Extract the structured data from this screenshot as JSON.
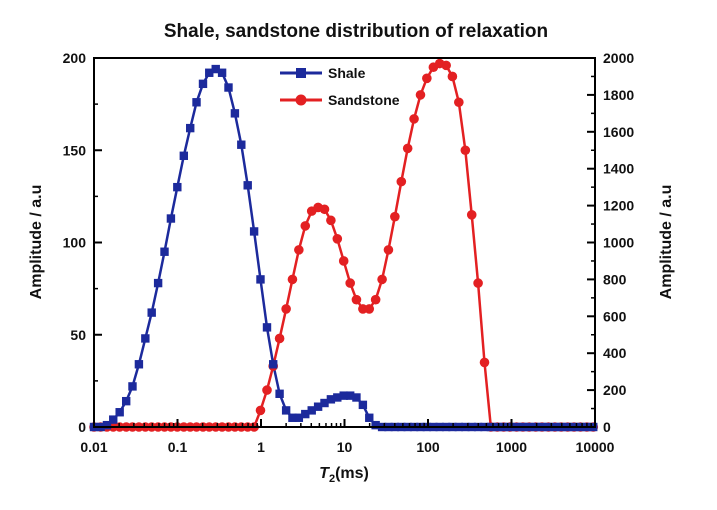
{
  "chart_data": {
    "type": "line",
    "title": "Shale, sandstone distribution of relaxation",
    "xlabel_main": "T",
    "xlabel_sub": "2",
    "xlabel_rest": "(ms)",
    "ylabel": "Amplitude / a.u",
    "y2label": "Amplitude / a.u",
    "xscale": "log",
    "xlim": [
      0.01,
      10000
    ],
    "ylim": [
      0,
      200
    ],
    "y2lim": [
      0,
      2000
    ],
    "x_ticks": [
      "0.01",
      "0.1",
      "1",
      "10",
      "100",
      "1000",
      "10000"
    ],
    "y_ticks": [
      "0",
      "50",
      "100",
      "150",
      "200"
    ],
    "y2_ticks": [
      "0",
      "200",
      "400",
      "600",
      "800",
      "1000",
      "1200",
      "1400",
      "1600",
      "1800",
      "2000"
    ],
    "legend_position": "top-center",
    "series": [
      {
        "name": "Shale",
        "axis": "left",
        "color": "#1c2a9c",
        "marker": "square",
        "x": [
          0.01,
          0.012,
          0.0143,
          0.017,
          0.0203,
          0.0243,
          0.0289,
          0.0345,
          0.0412,
          0.0491,
          0.0586,
          0.0699,
          0.0834,
          0.0995,
          0.119,
          0.142,
          0.169,
          0.202,
          0.24,
          0.287,
          0.342,
          0.408,
          0.487,
          0.581,
          0.693,
          0.827,
          0.986,
          1.18,
          1.4,
          1.67,
          2.0,
          2.38,
          2.84,
          3.39,
          4.05,
          4.83,
          5.76,
          6.87,
          8.2,
          9.78,
          11.7,
          13.9,
          16.6,
          19.8,
          23.6,
          28.2,
          33.6,
          40.1,
          47.9,
          57.1,
          68.1,
          81.3,
          96.9,
          116,
          138,
          165,
          196,
          234,
          280,
          334,
          398,
          475,
          566,
          676,
          806,
          962,
          1150,
          1370,
          1630,
          1950,
          2320,
          2770,
          3310,
          3940,
          4710,
          5610,
          6700,
          7990,
          9530
        ],
        "values": [
          0,
          0,
          1,
          4,
          8,
          14,
          22,
          34,
          48,
          62,
          78,
          95,
          113,
          130,
          147,
          162,
          176,
          186,
          192,
          194,
          192,
          184,
          170,
          153,
          131,
          106,
          80,
          54,
          34,
          18,
          9,
          5,
          5,
          7,
          9,
          11,
          13,
          15,
          16,
          17,
          17,
          16,
          12,
          5,
          1,
          0,
          0,
          0,
          0,
          0,
          0,
          0,
          0,
          0,
          0,
          0,
          0,
          0,
          0,
          0,
          0,
          0,
          0,
          0,
          0,
          0,
          0,
          0,
          0,
          0,
          0,
          0,
          0,
          0,
          0,
          0,
          0,
          0,
          0
        ]
      },
      {
        "name": "Sandstone",
        "axis": "right",
        "color": "#e32022",
        "marker": "circle",
        "x": [
          0.01,
          0.012,
          0.0143,
          0.017,
          0.0203,
          0.0243,
          0.0289,
          0.0345,
          0.0412,
          0.0491,
          0.0586,
          0.0699,
          0.0834,
          0.0995,
          0.119,
          0.142,
          0.169,
          0.202,
          0.24,
          0.287,
          0.342,
          0.408,
          0.487,
          0.581,
          0.693,
          0.827,
          0.986,
          1.18,
          1.4,
          1.67,
          2.0,
          2.38,
          2.84,
          3.39,
          4.05,
          4.83,
          5.76,
          6.87,
          8.2,
          9.78,
          11.7,
          13.9,
          16.6,
          19.8,
          23.6,
          28.2,
          33.6,
          40.1,
          47.9,
          57.1,
          68.1,
          81.3,
          96.9,
          116,
          138,
          165,
          196,
          234,
          280,
          334,
          398,
          475,
          566,
          676,
          806,
          962,
          1150,
          1370,
          1630,
          1950,
          2320,
          2770,
          3310,
          3940,
          4710,
          5610,
          6700,
          7990,
          9530
        ],
        "values": [
          0,
          0,
          0,
          0,
          0,
          0,
          0,
          0,
          0,
          0,
          0,
          0,
          0,
          0,
          0,
          0,
          0,
          0,
          0,
          0,
          0,
          0,
          0,
          0,
          0,
          0,
          90,
          200,
          330,
          480,
          640,
          800,
          960,
          1090,
          1170,
          1190,
          1180,
          1120,
          1020,
          900,
          780,
          690,
          640,
          640,
          690,
          800,
          960,
          1140,
          1330,
          1510,
          1670,
          1800,
          1890,
          1950,
          1970,
          1960,
          1900,
          1760,
          1500,
          1150,
          780,
          350,
          0,
          0,
          0,
          0,
          0,
          0,
          0,
          0,
          0,
          0,
          0,
          0,
          0,
          0,
          0,
          0,
          0
        ]
      }
    ]
  }
}
